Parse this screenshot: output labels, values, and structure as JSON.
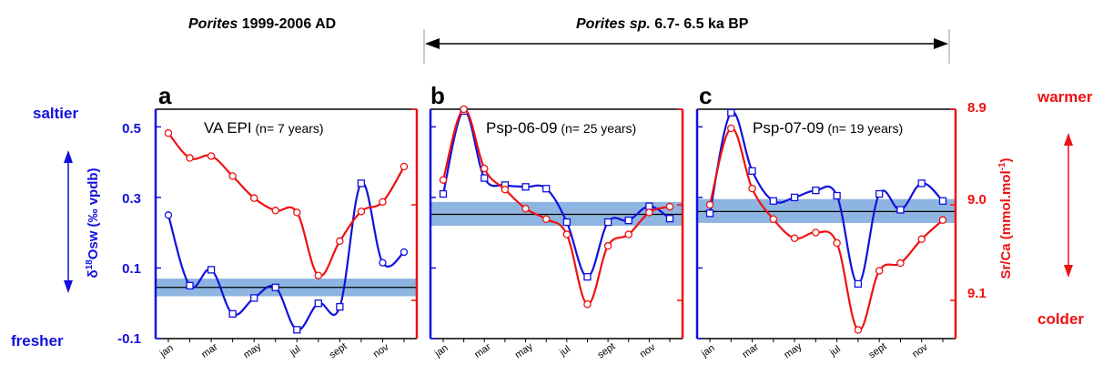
{
  "header": {
    "left_italic": "Porites",
    "left_rest": " 1999-2006 AD",
    "right_italic": "Porites sp.",
    "right_rest": " 6.7- 6.5 ka BP"
  },
  "side_labels": {
    "saltier": "saltier",
    "fresher": "fresher",
    "warmer": "warmer",
    "colder": "colder"
  },
  "axes": {
    "left_label_main": "δ",
    "left_label_sup": "18",
    "left_label_rest": "Osw (‰ vpdb)",
    "right_label_main": "Sr/Ca (mmol.mol",
    "right_label_sup": "-1",
    "right_label_end": ")",
    "left_ticks": [
      "0.5",
      "0.3",
      "0.1",
      "-0.1"
    ],
    "right_ticks": [
      "8.9",
      "9.0",
      "9.1"
    ]
  },
  "colors": {
    "d18O": "#1010dd",
    "srca": "#ee1111",
    "band": "#7aa8dc",
    "mean": "#000000"
  },
  "chart_data": [
    {
      "type": "line",
      "panel": "a",
      "title": "VA EPI",
      "title_n": "(n= 7 years)",
      "x_ticks": [
        "jan",
        "mar",
        "may",
        "jul",
        "sept",
        "nov"
      ],
      "x": [
        1,
        2,
        3,
        4,
        5,
        6,
        7,
        8,
        9,
        10,
        11,
        12
      ],
      "ylim_d18O": [
        -0.1,
        0.55
      ],
      "ylim_srca": [
        8.9,
        9.14
      ],
      "band_d18O": [
        0.02,
        0.07
      ],
      "mean_d18O": 0.045,
      "series": [
        {
          "key": "d18O",
          "axis": "left",
          "values": [
            0.25,
            0.05,
            0.095,
            -0.03,
            0.015,
            0.045,
            -0.075,
            0.0,
            -0.01,
            0.34,
            0.115,
            0.145
          ]
        },
        {
          "key": "srca",
          "axis": "right",
          "values": [
            8.925,
            8.951,
            8.949,
            8.97,
            8.993,
            9.006,
            9.008,
            9.074,
            9.038,
            9.007,
            8.997,
            8.96
          ]
        }
      ]
    },
    {
      "type": "line",
      "panel": "b",
      "title": "Psp-06-09",
      "title_n": "(n= 25 years)",
      "x_ticks": [
        "jan",
        "mar",
        "may",
        "jul",
        "sept",
        "nov"
      ],
      "x": [
        1,
        2,
        3,
        4,
        5,
        6,
        7,
        8,
        9,
        10,
        11,
        12
      ],
      "ylim_srca": [
        8.9,
        9.14
      ],
      "band_srca": [
        8.997,
        9.022
      ],
      "mean_srca": 9.01,
      "series": [
        {
          "key": "d18O",
          "axis": "left",
          "values": [
            0.31,
            0.545,
            0.355,
            0.335,
            0.33,
            0.325,
            0.23,
            0.075,
            0.23,
            0.235,
            0.275,
            0.24
          ]
        },
        {
          "key": "srca",
          "axis": "right",
          "values": [
            8.974,
            8.9,
            8.962,
            8.984,
            9.004,
            9.015,
            9.031,
            9.104,
            9.043,
            9.031,
            9.008,
            9.002
          ]
        }
      ]
    },
    {
      "type": "line",
      "panel": "c",
      "title": "Psp-07-09",
      "title_n": "(n= 19 years)",
      "x_ticks": [
        "jan",
        "mar",
        "may",
        "jul",
        "sept",
        "nov"
      ],
      "x": [
        1,
        2,
        3,
        4,
        5,
        6,
        7,
        8,
        9,
        10,
        11,
        12
      ],
      "ylim_srca": [
        8.9,
        9.14
      ],
      "band_srca": [
        8.994,
        9.019
      ],
      "mean_srca": 9.007,
      "series": [
        {
          "key": "d18O",
          "axis": "left",
          "values": [
            0.255,
            0.54,
            0.375,
            0.29,
            0.3,
            0.32,
            0.305,
            0.055,
            0.31,
            0.265,
            0.34,
            0.29
          ]
        },
        {
          "key": "srca",
          "axis": "right",
          "values": [
            9.0,
            8.92,
            8.983,
            9.015,
            9.035,
            9.029,
            9.04,
            9.131,
            9.069,
            9.061,
            9.036,
            9.016
          ]
        }
      ]
    }
  ]
}
